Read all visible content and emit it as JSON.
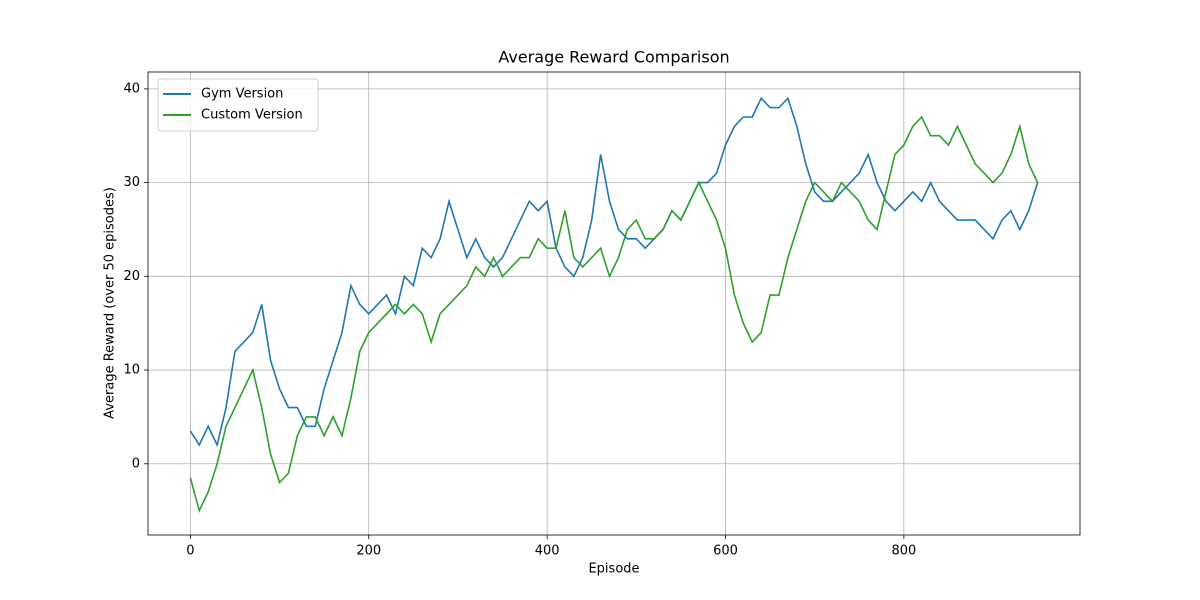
{
  "chart_data": {
    "type": "line",
    "title": "Average Reward Comparison",
    "x_label": "Episode",
    "y_label": "Average Reward (over 50 episodes)",
    "x": [
      0,
      10,
      20,
      30,
      40,
      50,
      60,
      70,
      80,
      90,
      100,
      110,
      120,
      130,
      140,
      150,
      160,
      170,
      180,
      190,
      200,
      210,
      220,
      230,
      240,
      250,
      260,
      270,
      280,
      290,
      300,
      310,
      320,
      330,
      340,
      350,
      360,
      370,
      380,
      390,
      400,
      410,
      420,
      430,
      440,
      450,
      460,
      470,
      480,
      490,
      500,
      510,
      520,
      530,
      540,
      550,
      560,
      570,
      580,
      590,
      600,
      610,
      620,
      630,
      640,
      650,
      660,
      670,
      680,
      690,
      700,
      710,
      720,
      730,
      740,
      750,
      760,
      770,
      780,
      790,
      800,
      810,
      820,
      830,
      840,
      850,
      860,
      870,
      880,
      890,
      900,
      910,
      920,
      930,
      940,
      950
    ],
    "series": [
      {
        "name": "Gym Version",
        "color": "#1f77b4",
        "values": [
          3.5,
          2,
          4,
          2,
          6,
          12,
          13,
          14,
          17,
          11,
          8,
          6,
          6,
          4,
          4,
          8,
          11,
          14,
          19,
          17,
          16,
          17,
          18,
          16,
          20,
          19,
          23,
          22,
          24,
          28,
          25,
          22,
          24,
          22,
          21,
          22,
          24,
          26,
          28,
          27,
          28,
          23,
          21,
          20,
          22,
          26,
          33,
          28,
          25,
          24,
          24,
          23,
          24,
          25,
          27,
          26,
          28,
          30,
          30,
          31,
          34,
          36,
          37,
          37,
          39,
          38,
          38,
          39,
          36,
          32,
          29,
          28,
          28,
          29,
          30,
          31,
          33,
          30,
          28,
          27,
          28,
          29,
          28,
          30,
          28,
          27,
          26,
          26,
          26,
          25,
          24,
          26,
          27,
          25,
          27,
          30
        ]
      },
      {
        "name": "Custom Version",
        "color": "#2ca02c",
        "values": [
          -1.5,
          -5,
          -3,
          0,
          4,
          6,
          8,
          10,
          6,
          1,
          -2,
          -1,
          3,
          5,
          5,
          3,
          5,
          3,
          7,
          12,
          14,
          15,
          16,
          17,
          16,
          17,
          16,
          13,
          16,
          17,
          18,
          19,
          21,
          20,
          22,
          20,
          21,
          22,
          22,
          24,
          23,
          23,
          27,
          22,
          21,
          22,
          23,
          20,
          22,
          25,
          26,
          24,
          24,
          25,
          27,
          26,
          28,
          30,
          28,
          26,
          23,
          18,
          15,
          13,
          14,
          18,
          18,
          22,
          25,
          28,
          30,
          29,
          28,
          30,
          29,
          28,
          26,
          25,
          29,
          33,
          34,
          36,
          37,
          35,
          35,
          34,
          36,
          34,
          32,
          31,
          30,
          31,
          33,
          36,
          32,
          30
        ]
      }
    ],
    "xlim": [
      -47.5,
      997.5
    ],
    "ylim": [
      -7.6,
      41.8
    ],
    "xticks": [
      0,
      200,
      400,
      600,
      800
    ],
    "yticks": [
      0,
      10,
      20,
      30,
      40
    ],
    "grid": true,
    "legend": "upper left"
  }
}
